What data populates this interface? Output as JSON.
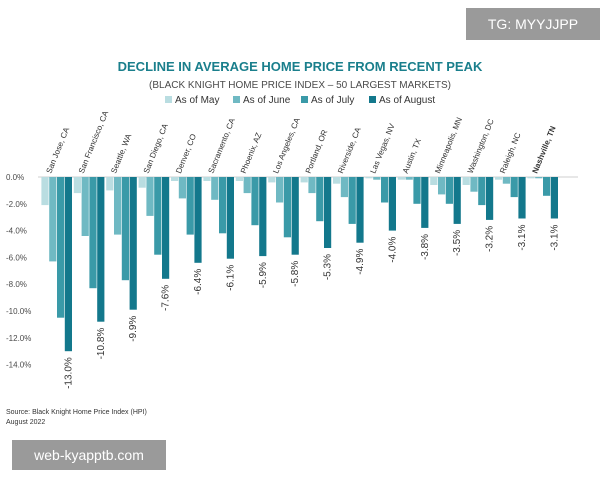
{
  "watermark_top": "TG: MYYJJPP",
  "watermark_bottom": "web-kyapptb.com",
  "source_line1": "Source: Black Knight Home Price Index (HPI)",
  "source_line2": "August 2022",
  "colors": {
    "may": "#b9dde1",
    "june": "#6fb9c3",
    "july": "#3a9aa8",
    "august": "#13788c",
    "title": "#1a7f8c",
    "axis_text": "#4a4a4a"
  },
  "chart_data": {
    "type": "bar",
    "title": "DECLINE IN AVERAGE HOME PRICE FROM RECENT PEAK",
    "subtitle": "(BLACK KNIGHT HOME PRICE INDEX – 50 LARGEST MARKETS)",
    "xlabel": "",
    "ylabel": "",
    "ylim": [
      -14,
      0
    ],
    "yticks": [
      0,
      -2,
      -4,
      -6,
      -8,
      -10,
      -12,
      -14
    ],
    "ytick_labels": [
      "0.0%",
      "-2.0%",
      "-4.0%",
      "-6.0%",
      "-8.0%",
      "-10.0%",
      "-12.0%",
      "-14.0%"
    ],
    "legend_position": "top",
    "categories": [
      "San Jose, CA",
      "San Francisco, CA",
      "Seattle, WA",
      "San Diego, CA",
      "Denver, CO",
      "Sacramento, CA",
      "Phoenix, AZ",
      "Los Angeles, CA",
      "Portland, OR",
      "Riverside, CA",
      "Las Vegas, NV",
      "Austin, TX",
      "Minneapolis, MN",
      "Washington, DC",
      "Raleigh, NC",
      "Nashville, TN"
    ],
    "bold_category": "Nashville, TN",
    "series": [
      {
        "name": "As of May",
        "values": [
          -2.1,
          -1.2,
          -1.0,
          -0.8,
          -0.3,
          -0.3,
          -0.3,
          -0.4,
          -0.4,
          -0.5,
          -0.1,
          -0.2,
          -0.6,
          -0.6,
          -0.2,
          -0.1
        ]
      },
      {
        "name": "As of June",
        "values": [
          -6.3,
          -4.4,
          -4.3,
          -2.9,
          -1.6,
          -1.7,
          -1.2,
          -1.9,
          -1.2,
          -1.5,
          -0.2,
          -0.2,
          -1.3,
          -1.1,
          -0.5,
          -0.1
        ]
      },
      {
        "name": "As of July",
        "values": [
          -10.5,
          -8.3,
          -7.7,
          -5.8,
          -4.3,
          -4.2,
          -3.6,
          -4.5,
          -3.3,
          -3.5,
          -1.9,
          -2.0,
          -2.0,
          -2.1,
          -1.5,
          -1.4
        ]
      },
      {
        "name": "As of August",
        "values": [
          -13.0,
          -10.8,
          -9.9,
          -7.6,
          -6.4,
          -6.1,
          -5.9,
          -5.8,
          -5.3,
          -4.9,
          -4.0,
          -3.8,
          -3.5,
          -3.2,
          -3.1,
          -3.1
        ]
      }
    ],
    "data_labels": [
      "-13.0%",
      "-10.8%",
      "-9.9%",
      "-7.6%",
      "-6.4%",
      "-6.1%",
      "-5.9%",
      "-5.8%",
      "-5.3%",
      "-4.9%",
      "-4.0%",
      "-3.8%",
      "-3.5%",
      "-3.2%",
      "-3.1%",
      "-3.1%"
    ]
  }
}
